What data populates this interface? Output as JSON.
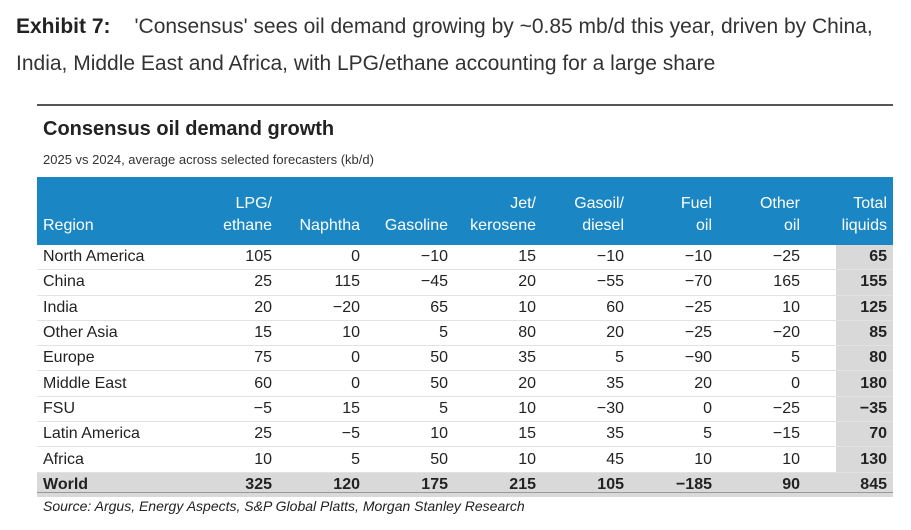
{
  "header": {
    "label": "Exhibit 7:",
    "title": "'Consensus' sees oil demand growing by ~0.85 mb/d this year, driven by China, India, Middle East and Africa, with LPG/ethane accounting for a large share"
  },
  "table": {
    "title": "Consensus oil demand growth",
    "subtitle": "2025 vs 2024, average across selected forecasters (kb/d)",
    "columns": [
      [
        "Region"
      ],
      [
        "LPG/",
        "ethane"
      ],
      [
        "Naphtha"
      ],
      [
        "Gasoline"
      ],
      [
        "Jet/",
        "kerosene"
      ],
      [
        "Gasoil/",
        "diesel"
      ],
      [
        "Fuel",
        "oil"
      ],
      [
        "Other",
        "oil"
      ],
      [
        "Total",
        "liquids"
      ]
    ],
    "rows": [
      [
        "North America",
        "105",
        "0",
        "−10",
        "15",
        "−10",
        "−10",
        "−25",
        "65"
      ],
      [
        "China",
        "25",
        "115",
        "−45",
        "20",
        "−55",
        "−70",
        "165",
        "155"
      ],
      [
        "India",
        "20",
        "−20",
        "65",
        "10",
        "60",
        "−25",
        "10",
        "125"
      ],
      [
        "Other Asia",
        "15",
        "10",
        "5",
        "80",
        "20",
        "−25",
        "−20",
        "85"
      ],
      [
        "Europe",
        "75",
        "0",
        "50",
        "35",
        "5",
        "−90",
        "5",
        "80"
      ],
      [
        "Middle East",
        "60",
        "0",
        "50",
        "20",
        "35",
        "20",
        "0",
        "180"
      ],
      [
        "FSU",
        "−5",
        "15",
        "5",
        "10",
        "−30",
        "0",
        "−25",
        "−35"
      ],
      [
        "Latin America",
        "25",
        "−5",
        "10",
        "15",
        "35",
        "5",
        "−15",
        "70"
      ],
      [
        "Africa",
        "10",
        "5",
        "50",
        "10",
        "45",
        "10",
        "10",
        "130"
      ]
    ],
    "total_row": [
      "World",
      "325",
      "120",
      "175",
      "215",
      "105",
      "−185",
      "90",
      "845"
    ],
    "source": "Source: Argus, Energy Aspects, S&P Global Platts, Morgan Stanley Research"
  }
}
